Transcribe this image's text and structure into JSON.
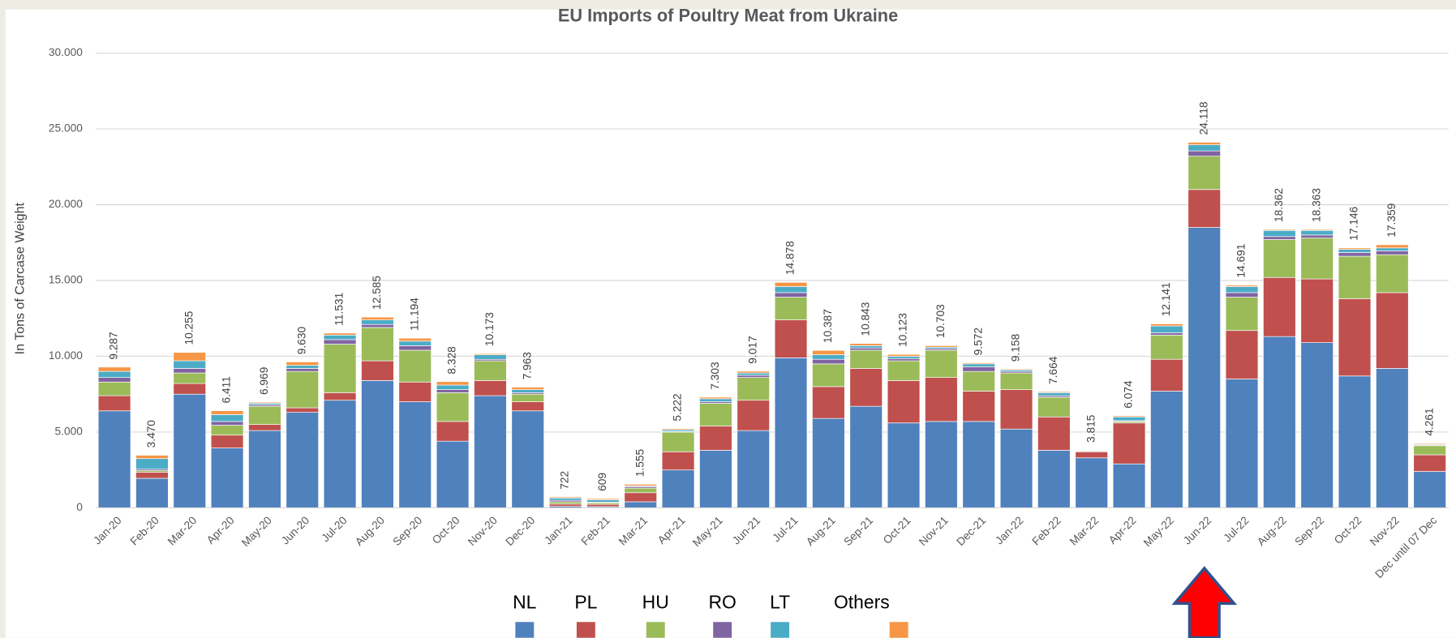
{
  "chart_data": {
    "type": "stacked_bar",
    "title": "EU Imports of Poultry Meat from Ukraine",
    "y_label": "In Tons of Carcase Weight",
    "categories": [
      "Jan-20",
      "Feb-20",
      "Mar-20",
      "Apr-20",
      "May-20",
      "Jun-20",
      "Jul-20",
      "Aug-20",
      "Sep-20",
      "Oct-20",
      "Nov-20",
      "Dec-20",
      "Jan-21",
      "Feb-21",
      "Mar-21",
      "Apr-21",
      "May-21",
      "Jun-21",
      "Jul-21",
      "Aug-21",
      "Sep-21",
      "Oct-21",
      "Nov-21",
      "Dec-21",
      "Jan-22",
      "Feb-22",
      "Mar-22",
      "Apr-22",
      "May-22",
      "Jun-22",
      "Jul-22",
      "Aug-22",
      "Sep-22",
      "Oct-22",
      "Nov-22",
      "Dec until 07 Dec"
    ],
    "series": [
      {
        "name": "NL",
        "color": "#4f81bd",
        "values": [
          6400,
          1950,
          7500,
          3950,
          5100,
          6300,
          7100,
          8400,
          7000,
          4400,
          7400,
          6400,
          100,
          80,
          400,
          2500,
          3800,
          5100,
          9900,
          5900,
          6700,
          5600,
          5700,
          5700,
          5200,
          3800,
          3300,
          2900,
          7700,
          18500,
          8500,
          11300,
          10900,
          8700,
          9200,
          2400
        ]
      },
      {
        "name": "PL",
        "color": "#c0504d",
        "values": [
          1000,
          400,
          700,
          850,
          400,
          300,
          500,
          1300,
          1300,
          1300,
          1000,
          600,
          150,
          150,
          600,
          1200,
          1600,
          2000,
          2500,
          2100,
          2500,
          2800,
          2900,
          2000,
          2600,
          2200,
          400,
          2700,
          2100,
          2500,
          3200,
          3900,
          4200,
          5100,
          5000,
          1100
        ]
      },
      {
        "name": "HU",
        "color": "#9bbb59",
        "values": [
          900,
          100,
          700,
          650,
          1200,
          2400,
          3200,
          2200,
          2100,
          1900,
          1300,
          500,
          150,
          100,
          300,
          1300,
          1500,
          1500,
          1500,
          1500,
          1200,
          1300,
          1800,
          1300,
          1100,
          1300,
          50,
          100,
          1600,
          2200,
          2200,
          2500,
          2700,
          2800,
          2500,
          600
        ]
      },
      {
        "name": "RO",
        "color": "#8064a2",
        "values": [
          300,
          100,
          300,
          250,
          100,
          200,
          300,
          200,
          300,
          200,
          100,
          100,
          100,
          50,
          100,
          50,
          100,
          150,
          300,
          300,
          150,
          150,
          100,
          300,
          100,
          100,
          30,
          50,
          150,
          350,
          300,
          200,
          200,
          250,
          250,
          50
        ]
      },
      {
        "name": "LT",
        "color": "#4bacc6",
        "values": [
          400,
          700,
          500,
          450,
          100,
          200,
          300,
          300,
          300,
          300,
          300,
          200,
          150,
          150,
          50,
          100,
          200,
          150,
          400,
          300,
          150,
          150,
          100,
          200,
          100,
          200,
          20,
          250,
          450,
          400,
          400,
          400,
          300,
          200,
          200,
          50
        ]
      },
      {
        "name": "Others",
        "color": "#f79646",
        "values": [
          287,
          220,
          555,
          261,
          69,
          230,
          131,
          185,
          194,
          228,
          73,
          163,
          72,
          79,
          105,
          72,
          103,
          117,
          278,
          287,
          143,
          123,
          103,
          72,
          58,
          64,
          15,
          74,
          141,
          168,
          91,
          62,
          63,
          96,
          209,
          61
        ]
      }
    ],
    "totals": [
      9287,
      3470,
      10255,
      6411,
      6969,
      9630,
      11531,
      12585,
      11194,
      8328,
      10173,
      7963,
      722,
      609,
      1555,
      5222,
      7303,
      9017,
      14878,
      10387,
      10843,
      10123,
      10703,
      9572,
      9158,
      7664,
      3815,
      6074,
      12141,
      24118,
      14691,
      18362,
      18363,
      17146,
      17359,
      4261
    ],
    "value_labels": [
      "9.287",
      "3.470",
      "10.255",
      "6.411",
      "6.969",
      "9.630",
      "11.531",
      "12.585",
      "11.194",
      "8.328",
      "10.173",
      "7.963",
      "722",
      "609",
      "1.555",
      "5.222",
      "7.303",
      "9.017",
      "14.878",
      "10.387",
      "10.843",
      "10.123",
      "10.703",
      "9.572",
      "9.158",
      "7.664",
      "3.815",
      "6.074",
      "12.141",
      "24.118",
      "14.691",
      "18.362",
      "18.363",
      "17.146",
      "17.359",
      "4.261"
    ],
    "ylim": [
      0,
      30000
    ],
    "yticks": [
      0,
      {
        "value": 5000,
        "label": "5.000"
      },
      {
        "value": 10000,
        "label": "10.000"
      },
      {
        "value": 15000,
        "label": "15.000"
      },
      {
        "value": 20000,
        "label": "20.000"
      },
      {
        "value": 25000,
        "label": "25.000"
      },
      {
        "value": 30000,
        "label": "30.000"
      }
    ],
    "grid": true
  }
}
